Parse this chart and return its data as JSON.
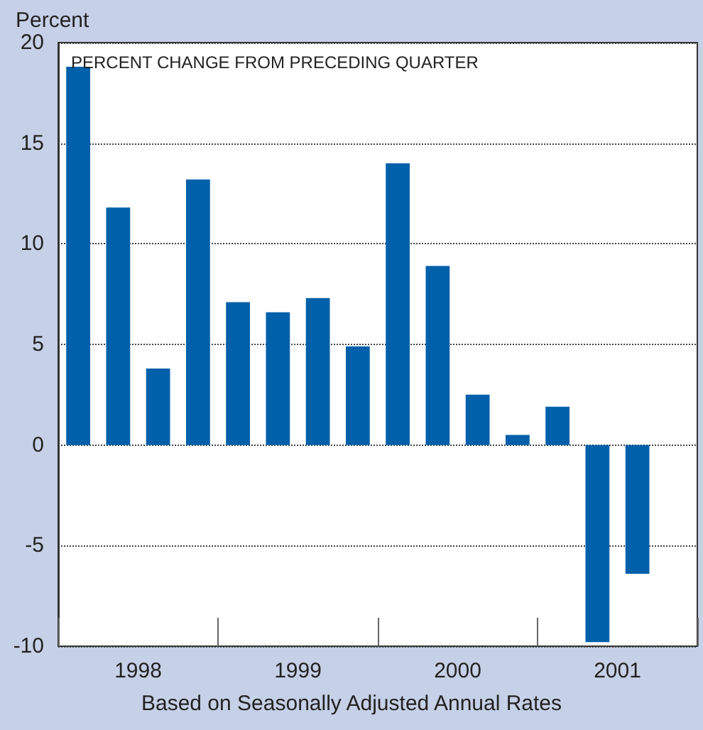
{
  "chart_data": {
    "type": "bar",
    "title": "PERCENT CHANGE FROM PRECEDING QUARTER",
    "ylabel": "Percent",
    "xlabel": "Based on Seasonally Adjusted Annual Rates",
    "categories": [
      "1998",
      "1999",
      "2000",
      "2001"
    ],
    "series": [
      {
        "color": "#0060aa",
        "values": [
          18.8,
          7.1,
          14.0,
          1.9
        ]
      },
      {
        "color": "#0060aa",
        "values": [
          11.8,
          6.6,
          8.9,
          -9.8
        ]
      },
      {
        "color": "#0060aa",
        "values": [
          3.8,
          7.3,
          2.5,
          -6.4
        ]
      },
      {
        "color": "#0060aa",
        "values": [
          13.2,
          4.9,
          0.5,
          null
        ]
      }
    ],
    "ylim": [
      -10,
      20
    ],
    "yticks": [
      -10,
      -5,
      0,
      5,
      10,
      15,
      20
    ],
    "grid": "y"
  }
}
